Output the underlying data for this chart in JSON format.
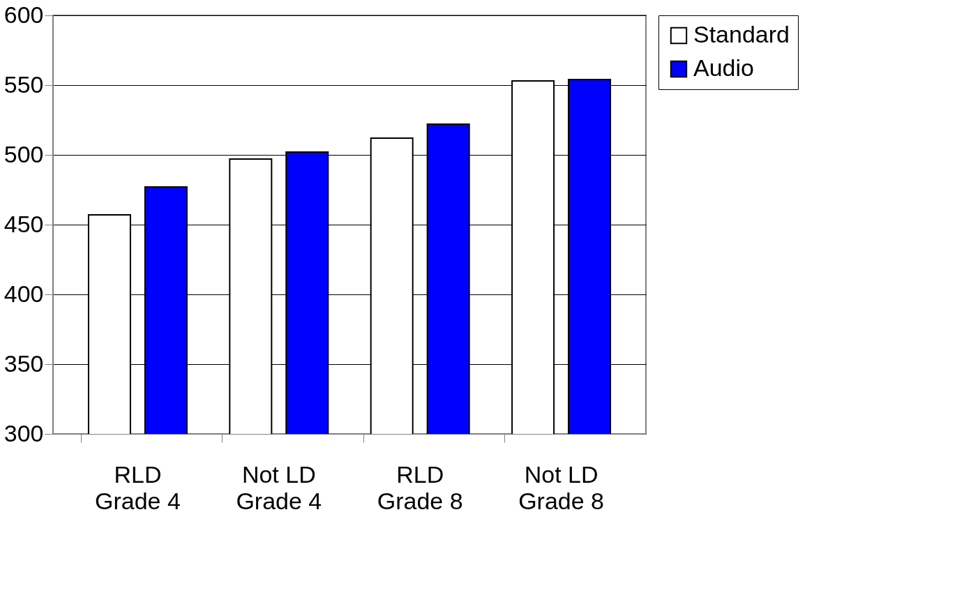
{
  "chart_data": {
    "type": "bar",
    "categories": [
      "RLD\nGrade 4",
      "Not LD\nGrade 4",
      "RLD\nGrade 8",
      "Not LD\nGrade 8"
    ],
    "series": [
      {
        "name": "Standard",
        "color": "#ffffff",
        "values": [
          457,
          497,
          512,
          553
        ]
      },
      {
        "name": "Audio",
        "color": "#0000ff",
        "values": [
          477,
          502,
          522,
          554
        ]
      }
    ],
    "ylim": [
      300,
      600
    ],
    "yticks": [
      300,
      350,
      400,
      450,
      500,
      550,
      600
    ],
    "grid": "y",
    "legend": "right"
  }
}
